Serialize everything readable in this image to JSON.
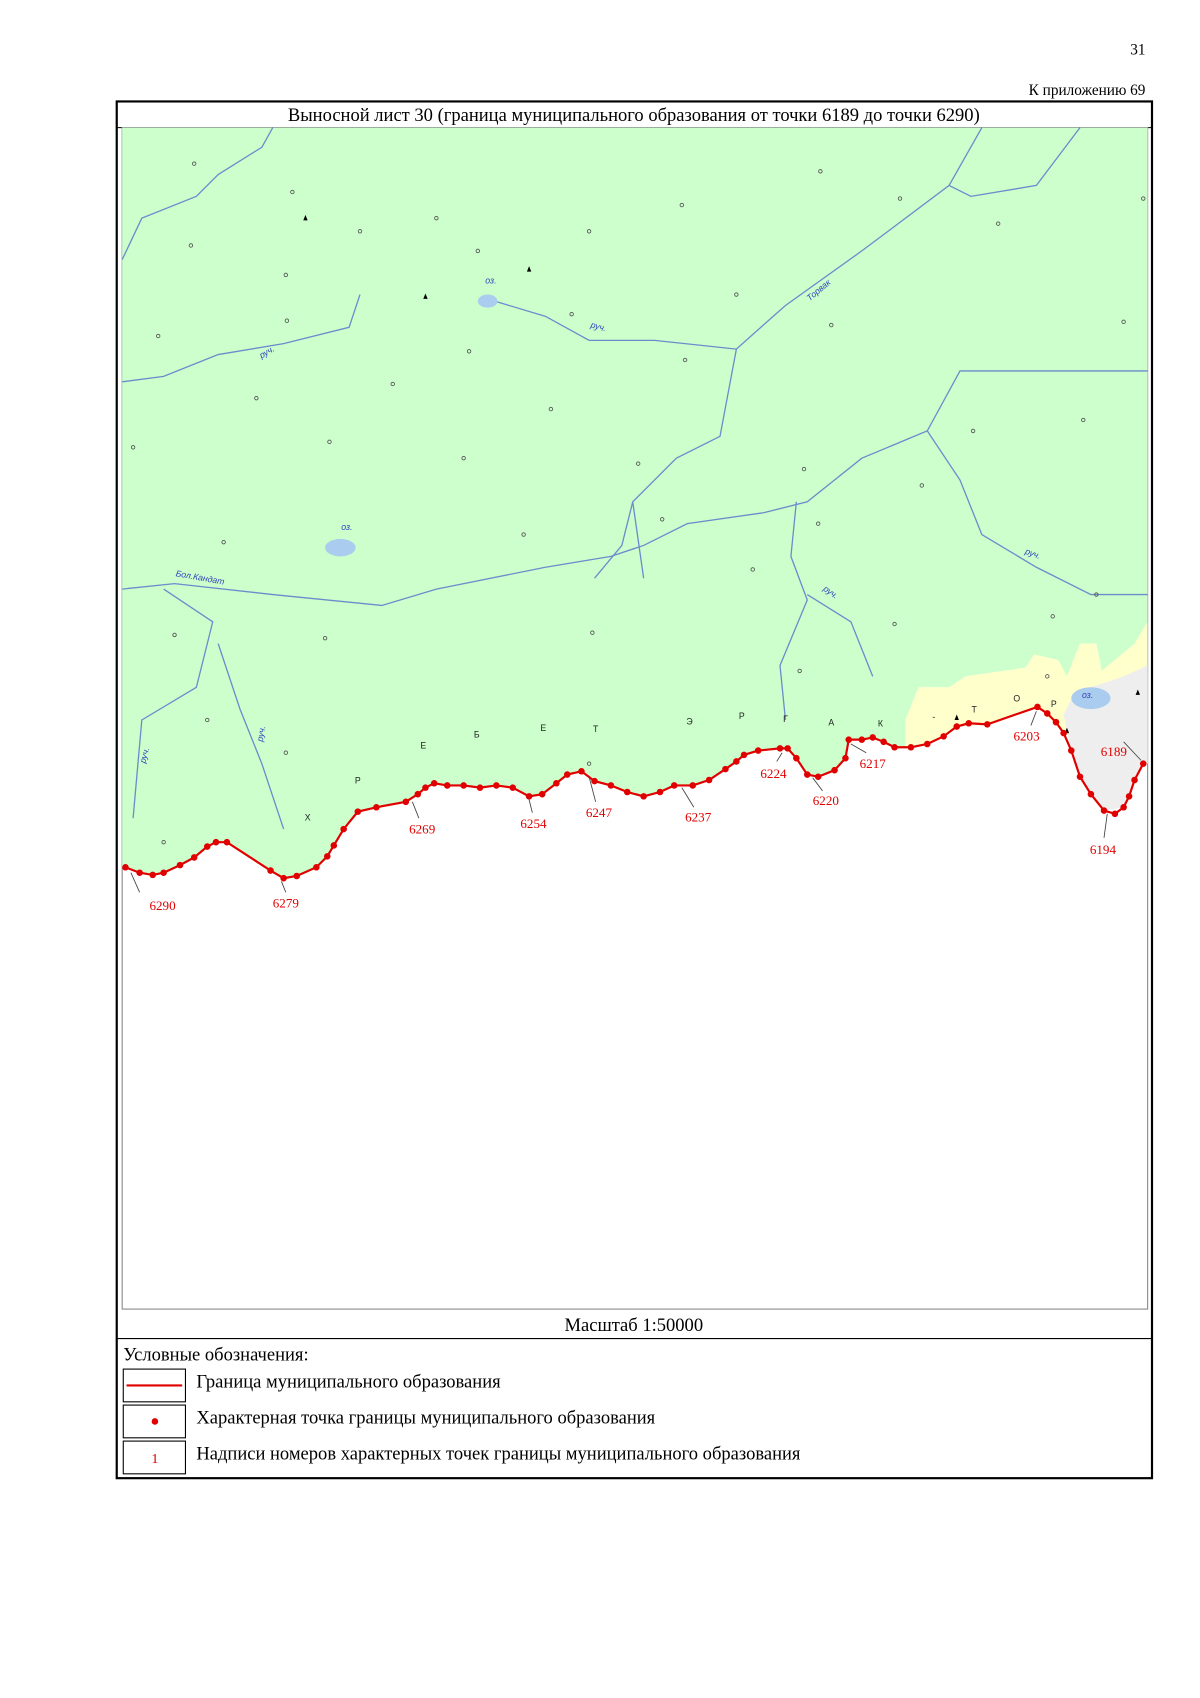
{
  "header": {
    "page_number": "31",
    "appendix": "К приложению 69"
  },
  "map": {
    "title": "Выносной лист 30 (граница муниципального образования от точки 6189 до точки 6290)",
    "point_labels": [
      "6290",
      "6279",
      "6269",
      "6254",
      "6247",
      "6237",
      "6224",
      "6220",
      "6217",
      "6203",
      "6189",
      "6194"
    ],
    "place_labels": [
      "руч.",
      "руч.",
      "оз.",
      "оз.",
      "Торвак",
      "Бол.Кандат",
      "руч.",
      "руч.",
      "руч.",
      "руч.",
      "оз."
    ],
    "ridge_letters": [
      "Х",
      "Р",
      "Е",
      "Б",
      "Е",
      "Т",
      "Э",
      "Р",
      "Г",
      "А",
      "К",
      "-",
      "Т",
      "О",
      "Р"
    ],
    "scale": "Масштаб 1:50000"
  },
  "legend": {
    "title": "Условные обозначения:",
    "items": [
      {
        "label": "Граница муниципального образования"
      },
      {
        "label": "Характерная точка границы муниципального образования"
      },
      {
        "sample": "1",
        "label": "Надписи номеров характерных точек границы муниципального образования"
      }
    ]
  }
}
